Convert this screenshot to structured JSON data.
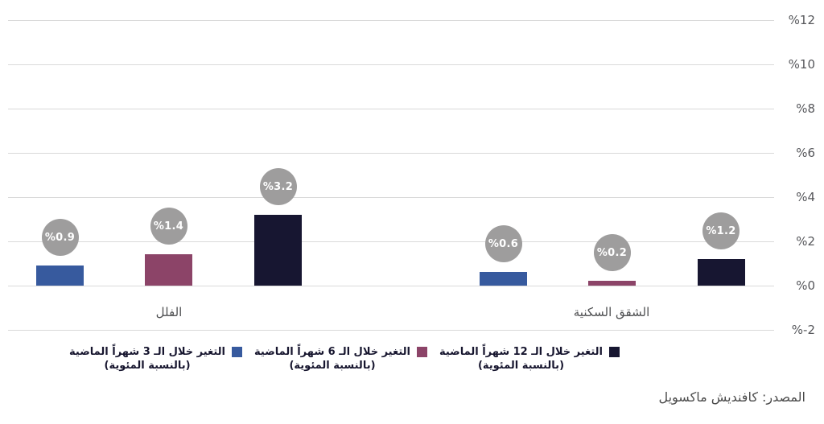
{
  "chart_data": {
    "type": "bar",
    "title": "",
    "xlabel": "",
    "ylabel": "",
    "categories": [
      "الفلل",
      "الشقق السكنية"
    ],
    "series": [
      {
        "name": "التغير خلال الـ 3 شهراً الماضية (بالنسبة المئوية)",
        "color": "#375a9e",
        "values": [
          0.9,
          0.6
        ],
        "labels": [
          "%0.9",
          "%0.6"
        ]
      },
      {
        "name": "التغير خلال الـ 6 شهراً الماضية (بالنسبة المئوية)",
        "color": "#8c4468",
        "values": [
          1.4,
          0.2
        ],
        "labels": [
          "%1.4",
          "%0.2"
        ]
      },
      {
        "name": "التغير خلال الـ 12 شهراً الماضية (بالنسبة المئوية)",
        "color": "#171631",
        "values": [
          3.2,
          1.2
        ],
        "labels": [
          "%3.2",
          "%1.2"
        ]
      }
    ],
    "y_axis": {
      "side": "right",
      "min": -2,
      "max": 12,
      "ticks": [
        {
          "label": "%12",
          "value": 12
        },
        {
          "label": "%10",
          "value": 10
        },
        {
          "label": "%8",
          "value": 8
        },
        {
          "label": "%6",
          "value": 6
        },
        {
          "label": "%4",
          "value": 4
        },
        {
          "label": "%2",
          "value": 2
        },
        {
          "label": "%0",
          "value": 0
        },
        {
          "label": "%-2",
          "value": -2
        }
      ]
    },
    "grid": true,
    "legend_position": "bottom",
    "data_label_style": {
      "shape": "circle",
      "background": "#9e9d9d",
      "text_color": "#ffffff"
    }
  },
  "legend": {
    "entries": [
      {
        "line1": "التغير خلال الـ 12 شهراً الماضية",
        "line2": "(بالنسبة المئوية)",
        "color": "#171631"
      },
      {
        "line1": "التغير خلال الـ 6 شهراً الماضية",
        "line2": "(بالنسبة المئوية)",
        "color": "#8c4468"
      },
      {
        "line1": "التغير خلال الـ 3 شهراً الماضية",
        "line2": "(بالنسبة المئوية)",
        "color": "#375a9e"
      }
    ]
  },
  "source_note": "المصدر: كافنديش ماكسويل",
  "colors": {
    "background": "#ffffff",
    "gridline": "#d9d9d9",
    "axis_text": "#56575b",
    "category_text": "#4f5052",
    "legend_text": "#16152e",
    "source_text": "#4a4a4a",
    "bubble": "#9e9d9d"
  }
}
